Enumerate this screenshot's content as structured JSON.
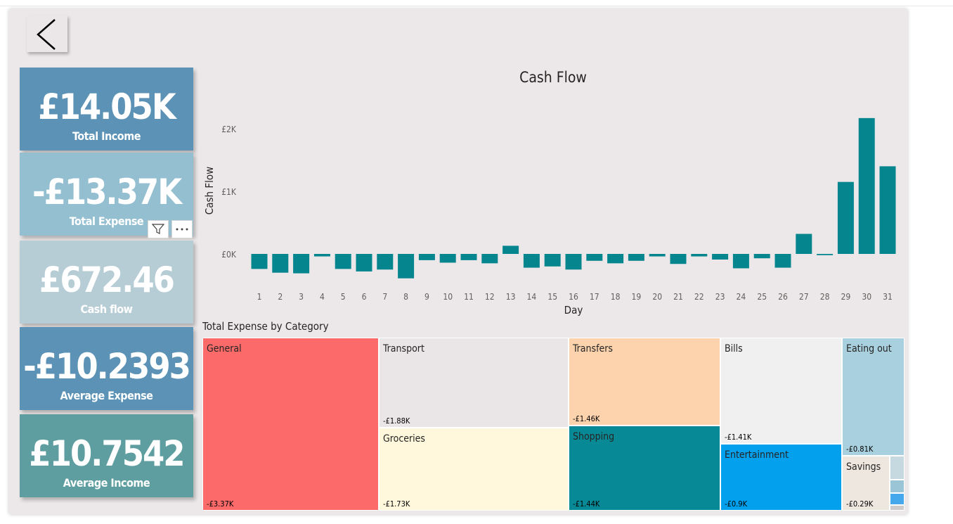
{
  "kpis": {
    "total_income": {
      "value": "£14.05K",
      "label": "Total Income",
      "color": "#5b92b5"
    },
    "total_expense": {
      "value": "-£13.37K",
      "label": "Total Expense",
      "color": "#94bfd1"
    },
    "cash_flow": {
      "value": "£672.46",
      "label": "Cash flow",
      "color": "#b7cdd6"
    },
    "average_expense": {
      "value": "-£10.2393",
      "label": "Average Expense",
      "color": "#5b92b5"
    },
    "average_income": {
      "value": "£10.7542",
      "label": "Average Income",
      "color": "#5f9ea0"
    }
  },
  "visual_header": {
    "filter_icon": "filter-icon",
    "more_icon": "more-options-icon"
  },
  "treemap": {
    "title": "Total Expense by Category",
    "tiles": [
      {
        "name": "General",
        "label": "-£3.37K",
        "value": 3370,
        "color": "#fd6a6a"
      },
      {
        "name": "Transport",
        "label": "-£1.88K",
        "value": 1880,
        "color": "#eae6e7"
      },
      {
        "name": "Groceries",
        "label": "-£1.73K",
        "value": 1730,
        "color": "#fff8dc"
      },
      {
        "name": "Transfers",
        "label": "-£1.46K",
        "value": 1460,
        "color": "#fdd3ae"
      },
      {
        "name": "Shopping",
        "label": "-£1.44K",
        "value": 1440,
        "color": "#088a96"
      },
      {
        "name": "Bills",
        "label": "-£1.41K",
        "value": 1410,
        "color": "#f0f0f0"
      },
      {
        "name": "Entertainment",
        "label": "-£0.9K",
        "value": 900,
        "color": "#03a0ed"
      },
      {
        "name": "Eating out",
        "label": "-£0.81K",
        "value": 810,
        "color": "#a9d0de"
      },
      {
        "name": "Savings",
        "label": "-£0.29K",
        "value": 290,
        "color": "#ede7df"
      }
    ],
    "small_tile_colors": [
      "#c6d9e1",
      "#9ac5d7",
      "#45a8ec"
    ]
  },
  "chart_data": {
    "type": "bar",
    "title": "Cash Flow",
    "xlabel": "Day",
    "ylabel": "Cash Flow",
    "categories": [
      "1",
      "2",
      "3",
      "4",
      "5",
      "6",
      "7",
      "8",
      "9",
      "10",
      "11",
      "12",
      "13",
      "14",
      "15",
      "16",
      "17",
      "18",
      "19",
      "20",
      "21",
      "22",
      "23",
      "24",
      "25",
      "26",
      "27",
      "28",
      "29",
      "30",
      "31"
    ],
    "values": [
      -240,
      -300,
      -310,
      -40,
      -240,
      -280,
      -250,
      -390,
      -100,
      -140,
      -100,
      -150,
      130,
      -220,
      -200,
      -250,
      -110,
      -150,
      -110,
      -40,
      -160,
      -40,
      -90,
      -230,
      -70,
      -220,
      320,
      -20,
      1150,
      2170,
      1400
    ],
    "yticks": [
      {
        "v": 0,
        "label": "£0K"
      },
      {
        "v": 1000,
        "label": "£1K"
      },
      {
        "v": 2000,
        "label": "£2K"
      }
    ],
    "ylim": [
      -400,
      2200
    ],
    "bar_color": "#05868f",
    "grid": false
  }
}
